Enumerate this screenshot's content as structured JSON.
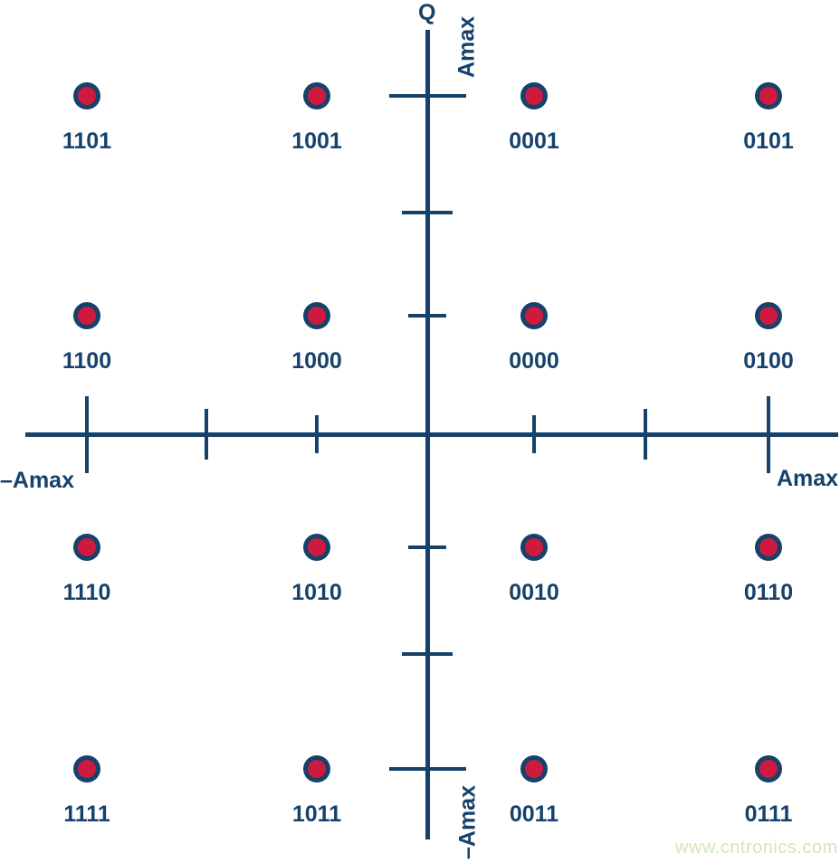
{
  "axes": {
    "q_title": "Q",
    "q_max_label": "Amax",
    "q_min_label": "–Amax",
    "i_max_label": "Amax",
    "i_min_label": "–Amax"
  },
  "watermark": {
    "text": "www.cntronics.com"
  },
  "colors": {
    "navy": "#15416b",
    "red": "#cd1a3f",
    "watermark_green": "#cfe8ba",
    "background": "#ffffff"
  },
  "chart_data": {
    "type": "scatter",
    "title": "",
    "xlabel_max": "Amax",
    "xlabel_min": "–Amax",
    "ylabel": "Q",
    "ylabel_max": "Amax",
    "ylabel_min": "–Amax",
    "level_unit": "Amax/3",
    "axis_tick_levels_i": [
      -3,
      -2,
      -1,
      1,
      2,
      3
    ],
    "axis_tick_levels_q": [
      3,
      2,
      1,
      -1,
      -2,
      -3
    ],
    "point_levels": [
      -3,
      -1,
      1,
      3
    ],
    "points": [
      {
        "label": "1101",
        "i": -3,
        "q": 3
      },
      {
        "label": "1001",
        "i": -1,
        "q": 3
      },
      {
        "label": "0001",
        "i": 1,
        "q": 3
      },
      {
        "label": "0101",
        "i": 3,
        "q": 3
      },
      {
        "label": "1100",
        "i": -3,
        "q": 1
      },
      {
        "label": "1000",
        "i": -1,
        "q": 1
      },
      {
        "label": "0000",
        "i": 1,
        "q": 1
      },
      {
        "label": "0100",
        "i": 3,
        "q": 1
      },
      {
        "label": "1110",
        "i": -3,
        "q": -1
      },
      {
        "label": "1010",
        "i": -1,
        "q": -1
      },
      {
        "label": "0010",
        "i": 1,
        "q": -1
      },
      {
        "label": "0110",
        "i": 3,
        "q": -1
      },
      {
        "label": "1111",
        "i": -3,
        "q": -3
      },
      {
        "label": "1011",
        "i": -1,
        "q": -3
      },
      {
        "label": "0011",
        "i": 1,
        "q": -3
      },
      {
        "label": "0111",
        "i": 3,
        "q": -3
      }
    ]
  }
}
